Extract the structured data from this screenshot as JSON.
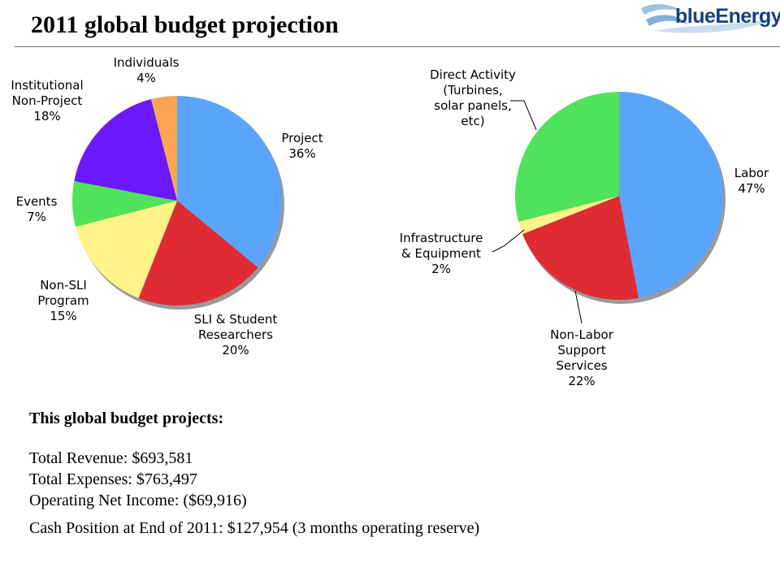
{
  "title": "2011 global budget projection",
  "logo": {
    "text": "blueEnergy"
  },
  "chart_data": [
    {
      "type": "pie",
      "name": "revenue",
      "slices": [
        {
          "label": [
            "Project",
            "36%"
          ],
          "value": 36,
          "color": "#5ba4fb"
        },
        {
          "label": [
            "SLI & Student",
            "Researchers",
            "20%"
          ],
          "value": 20,
          "color": "#e02b32"
        },
        {
          "label": [
            "Non-SLI",
            "Program",
            "15%"
          ],
          "value": 15,
          "color": "#fff38a"
        },
        {
          "label": [
            "Events",
            "7%"
          ],
          "value": 7,
          "color": "#4fe25b"
        },
        {
          "label": [
            "Institutional",
            "Non-Project",
            "18%"
          ],
          "value": 18,
          "color": "#6b18fc"
        },
        {
          "label": [
            "Individuals",
            "4%"
          ],
          "value": 4,
          "color": "#fba552"
        }
      ]
    },
    {
      "type": "pie",
      "name": "expenses",
      "slices": [
        {
          "label": [
            "Labor",
            "47%"
          ],
          "value": 47,
          "color": "#5ba4fb"
        },
        {
          "label": [
            "Non-Labor",
            "Support",
            "Services",
            "22%"
          ],
          "value": 22,
          "color": "#e02b32"
        },
        {
          "label": [
            "Infrastructure",
            "& Equipment",
            "2%"
          ],
          "value": 2,
          "color": "#fff38a"
        },
        {
          "label": [
            "Direct Activity",
            "(Turbines,",
            "solar panels,",
            "etc)"
          ],
          "value": 29,
          "color": "#4fe25b"
        }
      ]
    }
  ],
  "summary": {
    "heading": "This global budget projects:",
    "lines": [
      "Total Revenue: $693,581",
      "Total Expenses: $763,497",
      "Operating Net Income: ($69,916)"
    ],
    "cash": "Cash Position at End of 2011: $127,954 (3 months operating reserve)"
  }
}
